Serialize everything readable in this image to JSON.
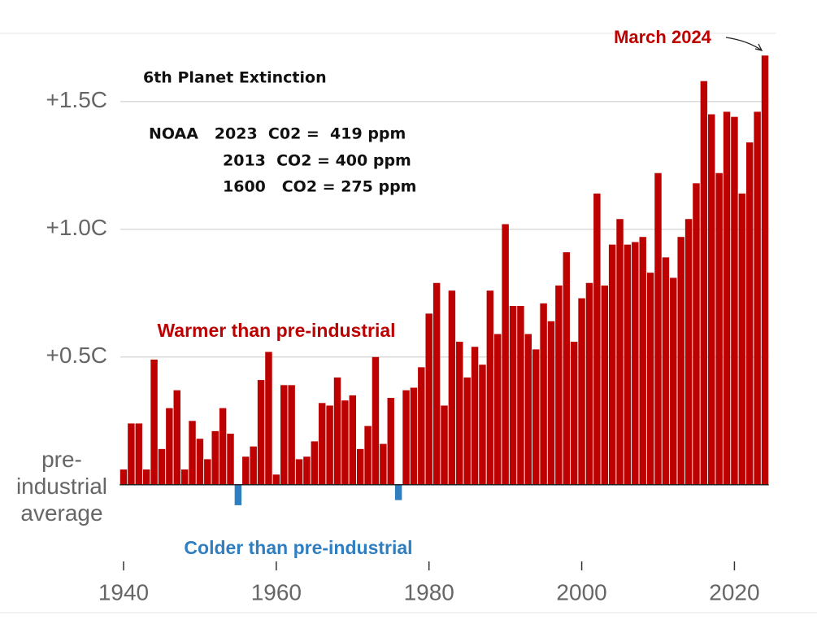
{
  "chart_data": {
    "type": "bar",
    "annotations": {
      "latest": "March 2024",
      "warmer": "Warmer than pre-industrial",
      "colder": "Colder than pre-industrial",
      "note_title": "6th Planet Extinction",
      "note_lines": [
        "NOAA   2023  C02 =  419 ppm",
        "2013  CO2 = 400 ppm",
        "1600   CO2 = 275 ppm"
      ]
    },
    "x": [
      1940,
      1941,
      1942,
      1943,
      1944,
      1945,
      1946,
      1947,
      1948,
      1949,
      1950,
      1951,
      1952,
      1953,
      1954,
      1955,
      1956,
      1957,
      1958,
      1959,
      1960,
      1961,
      1962,
      1963,
      1964,
      1965,
      1966,
      1967,
      1968,
      1969,
      1970,
      1971,
      1972,
      1973,
      1974,
      1975,
      1976,
      1977,
      1978,
      1979,
      1980,
      1981,
      1982,
      1983,
      1984,
      1985,
      1986,
      1987,
      1988,
      1989,
      1990,
      1991,
      1992,
      1993,
      1994,
      1995,
      1996,
      1997,
      1998,
      1999,
      2000,
      2001,
      2002,
      2003,
      2004,
      2005,
      2006,
      2007,
      2008,
      2009,
      2010,
      2011,
      2012,
      2013,
      2014,
      2015,
      2016,
      2017,
      2018,
      2019,
      2020,
      2021,
      2022,
      2023,
      2024
    ],
    "values": [
      0.06,
      0.24,
      0.24,
      0.06,
      0.49,
      0.14,
      0.3,
      0.37,
      0.06,
      0.25,
      0.18,
      0.1,
      0.21,
      0.3,
      0.2,
      -0.08,
      0.11,
      0.15,
      0.41,
      0.52,
      0.04,
      0.39,
      0.39,
      0.1,
      0.11,
      0.17,
      0.32,
      0.31,
      0.42,
      0.33,
      0.35,
      0.14,
      0.23,
      0.5,
      0.16,
      0.34,
      -0.06,
      0.37,
      0.38,
      0.46,
      0.67,
      0.79,
      0.31,
      0.76,
      0.56,
      0.42,
      0.54,
      0.47,
      0.76,
      0.59,
      1.02,
      0.7,
      0.7,
      0.59,
      0.53,
      0.71,
      0.64,
      0.78,
      0.91,
      0.56,
      0.73,
      0.79,
      1.14,
      0.78,
      0.94,
      1.04,
      0.94,
      0.95,
      0.97,
      0.83,
      1.22,
      0.89,
      0.81,
      0.97,
      1.04,
      1.18,
      1.58,
      1.45,
      1.22,
      1.46,
      1.44,
      1.14,
      1.34,
      1.46,
      1.68
    ],
    "color": "#bd0000",
    "negative_color": "#2f7ebf",
    "xlim": [
      1939.5,
      2024.5
    ],
    "xticks": [
      1940,
      1960,
      1980,
      2000,
      2020
    ],
    "ylim": [
      -0.3,
      1.8
    ],
    "yticks": [
      {
        "value": 0,
        "label": "pre-\nindustrial\naverage"
      },
      {
        "value": 0.5,
        "label": "+0.5C"
      },
      {
        "value": 1.0,
        "label": "+1.0C"
      },
      {
        "value": 1.5,
        "label": "+1.5C"
      }
    ],
    "grid": true
  }
}
